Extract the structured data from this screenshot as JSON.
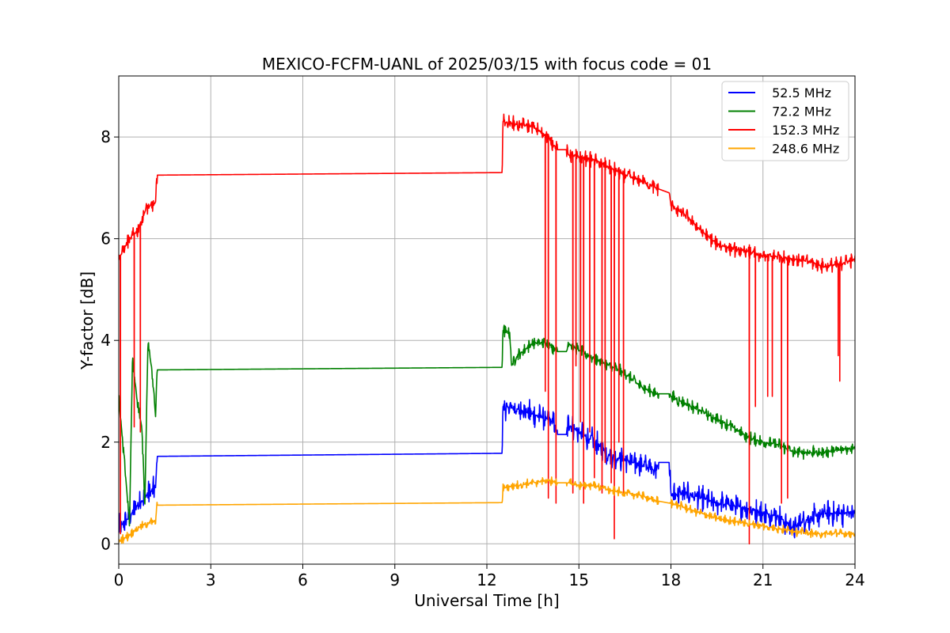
{
  "chart_data": {
    "type": "line",
    "title": "MEXICO-FCFM-UANL of 2025/03/15 with focus code = 01",
    "xlabel": "Universal Time [h]",
    "ylabel": "Y-factor [dB]",
    "xlim": [
      0,
      24
    ],
    "ylim": [
      -0.4,
      9.2
    ],
    "xticks": [
      0,
      3,
      6,
      9,
      12,
      15,
      18,
      21,
      24
    ],
    "yticks": [
      0,
      2,
      4,
      6,
      8
    ],
    "grid": true,
    "legend_position": "top-right",
    "series": [
      {
        "name": " 52.5 MHz",
        "color": "#0000ff",
        "noise": 0.28,
        "points": [
          [
            0,
            0.3
          ],
          [
            0.3,
            0.5
          ],
          [
            0.6,
            0.75
          ],
          [
            0.9,
            0.95
          ],
          [
            1.2,
            1.1
          ],
          [
            1.25,
            1.72
          ],
          [
            12.5,
            1.78
          ],
          [
            12.52,
            2.7
          ],
          [
            13.0,
            2.65
          ],
          [
            13.5,
            2.55
          ],
          [
            14.0,
            2.45
          ],
          [
            14.2,
            2.35
          ],
          [
            14.3,
            2.15
          ],
          [
            14.6,
            2.15
          ],
          [
            14.65,
            2.35
          ],
          [
            15.0,
            2.2
          ],
          [
            15.5,
            2.0
          ],
          [
            16.0,
            1.75
          ],
          [
            16.5,
            1.65
          ],
          [
            17.0,
            1.55
          ],
          [
            17.5,
            1.45
          ],
          [
            17.6,
            1.6
          ],
          [
            17.95,
            1.6
          ],
          [
            18.0,
            0.95
          ],
          [
            18.5,
            1.0
          ],
          [
            19.0,
            0.9
          ],
          [
            19.5,
            0.8
          ],
          [
            20.0,
            0.75
          ],
          [
            20.5,
            0.7
          ],
          [
            21.0,
            0.6
          ],
          [
            21.5,
            0.55
          ],
          [
            22.0,
            0.3
          ],
          [
            22.3,
            0.45
          ],
          [
            23.0,
            0.6
          ],
          [
            24.0,
            0.6
          ]
        ]
      },
      {
        "name": " 72.2 MHz",
        "color": "#008000",
        "noise": 0.14,
        "points": [
          [
            0,
            2.9
          ],
          [
            0.2,
            1.5
          ],
          [
            0.35,
            0.4
          ],
          [
            0.45,
            3.7
          ],
          [
            0.6,
            2.8
          ],
          [
            0.75,
            2.3
          ],
          [
            0.85,
            0.7
          ],
          [
            0.95,
            4.0
          ],
          [
            1.1,
            3.3
          ],
          [
            1.2,
            2.5
          ],
          [
            1.25,
            3.42
          ],
          [
            12.5,
            3.47
          ],
          [
            12.52,
            4.2
          ],
          [
            12.75,
            4.15
          ],
          [
            12.8,
            3.5
          ],
          [
            13.0,
            3.7
          ],
          [
            13.5,
            3.95
          ],
          [
            14.0,
            3.95
          ],
          [
            14.3,
            3.78
          ],
          [
            14.6,
            3.78
          ],
          [
            14.65,
            3.95
          ],
          [
            15.0,
            3.8
          ],
          [
            15.5,
            3.65
          ],
          [
            16.0,
            3.5
          ],
          [
            16.5,
            3.35
          ],
          [
            17.0,
            3.1
          ],
          [
            17.5,
            2.95
          ],
          [
            17.95,
            2.95
          ],
          [
            18.0,
            2.9
          ],
          [
            18.5,
            2.75
          ],
          [
            19.0,
            2.6
          ],
          [
            19.5,
            2.45
          ],
          [
            20.0,
            2.3
          ],
          [
            20.5,
            2.1
          ],
          [
            21.0,
            2.0
          ],
          [
            21.5,
            1.95
          ],
          [
            22.0,
            1.8
          ],
          [
            22.5,
            1.8
          ],
          [
            23.0,
            1.8
          ],
          [
            24.0,
            1.9
          ]
        ]
      },
      {
        "name": " 152.3 MHz",
        "color": "#ff0000",
        "noise": 0.16,
        "points": [
          [
            0,
            5.6
          ],
          [
            0.3,
            5.95
          ],
          [
            0.6,
            6.15
          ],
          [
            0.9,
            6.6
          ],
          [
            1.2,
            6.7
          ],
          [
            1.25,
            7.25
          ],
          [
            12.5,
            7.3
          ],
          [
            12.52,
            8.3
          ],
          [
            13.0,
            8.25
          ],
          [
            13.5,
            8.2
          ],
          [
            14.0,
            8.0
          ],
          [
            14.3,
            7.75
          ],
          [
            14.6,
            7.75
          ],
          [
            14.65,
            7.65
          ],
          [
            15.0,
            7.6
          ],
          [
            15.5,
            7.55
          ],
          [
            16.0,
            7.4
          ],
          [
            16.5,
            7.25
          ],
          [
            17.0,
            7.15
          ],
          [
            17.5,
            7.0
          ],
          [
            17.95,
            6.9
          ],
          [
            18.0,
            6.65
          ],
          [
            18.5,
            6.45
          ],
          [
            19.0,
            6.15
          ],
          [
            19.5,
            5.9
          ],
          [
            20.0,
            5.8
          ],
          [
            20.5,
            5.75
          ],
          [
            21.0,
            5.65
          ],
          [
            21.5,
            5.65
          ],
          [
            22.0,
            5.6
          ],
          [
            22.5,
            5.55
          ],
          [
            23.0,
            5.45
          ],
          [
            23.5,
            5.5
          ],
          [
            24.0,
            5.6
          ]
        ],
        "dips": [
          [
            0.05,
            0.2
          ],
          [
            0.5,
            2.3
          ],
          [
            0.7,
            2.2
          ],
          [
            13.9,
            3.0
          ],
          [
            14.0,
            0.9
          ],
          [
            14.25,
            0.8
          ],
          [
            14.8,
            1.0
          ],
          [
            14.9,
            3.5
          ],
          [
            15.05,
            2.4
          ],
          [
            15.15,
            0.8
          ],
          [
            15.35,
            2.2
          ],
          [
            15.5,
            1.3
          ],
          [
            15.75,
            1.0
          ],
          [
            15.85,
            1.6
          ],
          [
            16.05,
            1.2
          ],
          [
            16.15,
            0.1
          ],
          [
            16.3,
            2.0
          ],
          [
            16.45,
            1.0
          ],
          [
            20.55,
            0.0
          ],
          [
            20.75,
            2.7
          ],
          [
            21.15,
            2.9
          ],
          [
            21.3,
            2.9
          ],
          [
            21.6,
            0.8
          ],
          [
            21.8,
            0.9
          ],
          [
            23.45,
            3.7
          ],
          [
            23.5,
            3.2
          ]
        ]
      },
      {
        "name": " 248.6 MHz",
        "color": "#ffa500",
        "noise": 0.1,
        "points": [
          [
            0,
            0.05
          ],
          [
            0.3,
            0.15
          ],
          [
            0.6,
            0.3
          ],
          [
            0.9,
            0.4
          ],
          [
            1.2,
            0.45
          ],
          [
            1.25,
            0.76
          ],
          [
            12.5,
            0.81
          ],
          [
            12.52,
            1.1
          ],
          [
            13.0,
            1.15
          ],
          [
            13.5,
            1.2
          ],
          [
            14.0,
            1.25
          ],
          [
            14.3,
            1.2
          ],
          [
            14.6,
            1.2
          ],
          [
            14.65,
            1.2
          ],
          [
            15.0,
            1.15
          ],
          [
            15.5,
            1.15
          ],
          [
            16.0,
            1.05
          ],
          [
            16.5,
            1.0
          ],
          [
            17.0,
            0.95
          ],
          [
            17.5,
            0.85
          ],
          [
            17.95,
            0.8
          ],
          [
            18.0,
            0.8
          ],
          [
            18.5,
            0.7
          ],
          [
            19.0,
            0.6
          ],
          [
            19.5,
            0.5
          ],
          [
            20.0,
            0.45
          ],
          [
            20.5,
            0.4
          ],
          [
            21.0,
            0.35
          ],
          [
            21.5,
            0.3
          ],
          [
            22.0,
            0.25
          ],
          [
            22.5,
            0.2
          ],
          [
            23.0,
            0.2
          ],
          [
            24.0,
            0.2
          ]
        ]
      }
    ]
  }
}
